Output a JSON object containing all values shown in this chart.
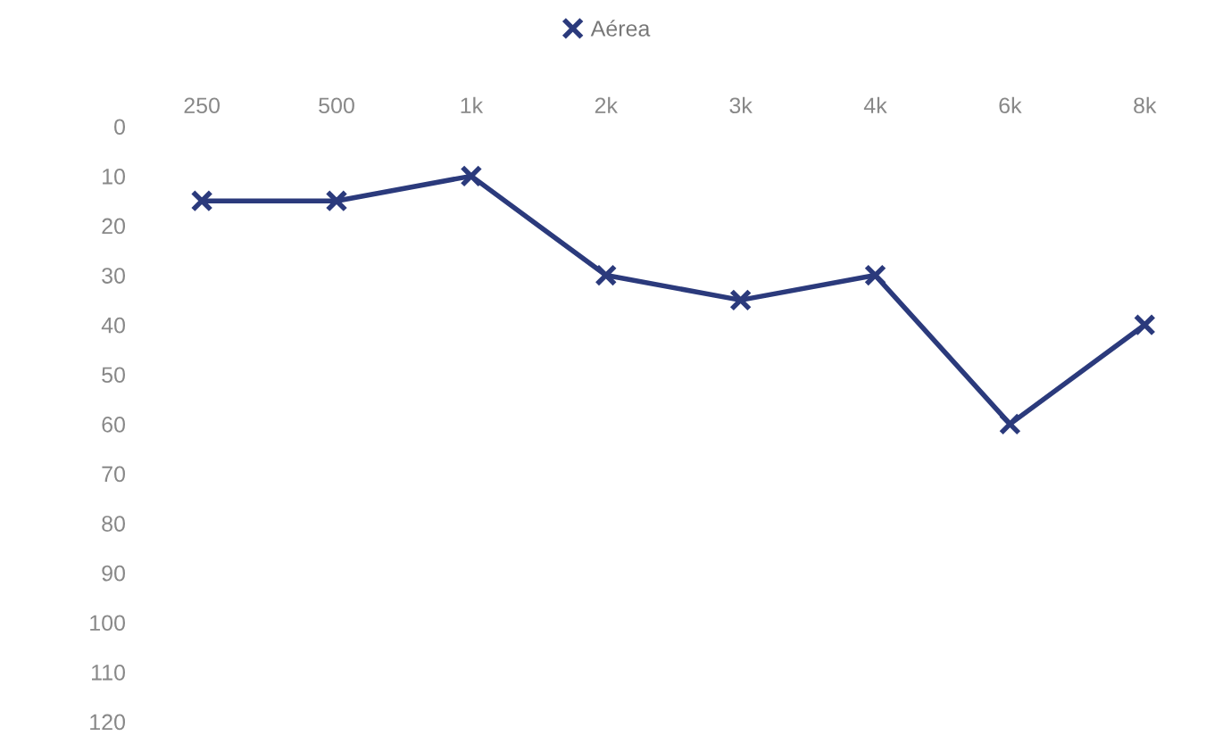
{
  "chart_data": {
    "type": "line",
    "categories": [
      "250",
      "500",
      "1k",
      "2k",
      "3k",
      "4k",
      "6k",
      "8k"
    ],
    "series": [
      {
        "name": "Aérea",
        "color": "#2b3a7c",
        "values": [
          15,
          15,
          10,
          30,
          35,
          30,
          60,
          40
        ]
      }
    ],
    "ylim": [
      120,
      0
    ],
    "yticks": [
      0,
      10,
      20,
      30,
      40,
      50,
      60,
      70,
      80,
      90,
      100,
      110,
      120
    ],
    "marker": "cross",
    "line_style": "solid",
    "legend": "top",
    "grid": false
  }
}
